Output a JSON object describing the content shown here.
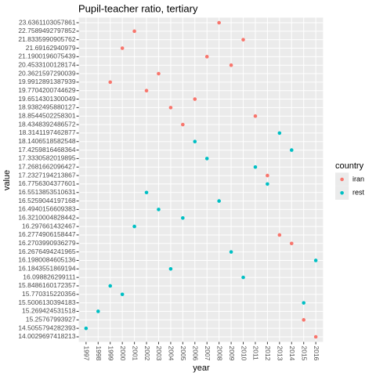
{
  "chart_data": {
    "type": "scatter",
    "title": "Pupil-teacher ratio, tertiary",
    "x_label": "year",
    "y_label": "value",
    "legend_title": "country",
    "legend_position": "right",
    "categories": [
      1997,
      1998,
      1999,
      2000,
      2001,
      2002,
      2003,
      2004,
      2005,
      2006,
      2007,
      2008,
      2009,
      2010,
      2011,
      2012,
      2013,
      2014,
      2015,
      2016
    ],
    "yticks": [
      14.0029697418213,
      14.5055794282393,
      15.25767993927,
      15.269424531518,
      15.5006130394183,
      15.770315220356,
      15.8486160172357,
      16.098826299111,
      16.1843551869194,
      16.1980084605136,
      16.2676494241965,
      16.2703990936279,
      16.2774906158447,
      16.297661432467,
      16.3210004828442,
      16.4940156609383,
      16.5259044197168,
      16.5513853510631,
      16.7756304377601,
      17.2327194213867,
      17.2681662096427,
      17.3330582019895,
      17.4259816468364,
      18.1406518582548,
      18.3141197462877,
      18.4348392486572,
      18.8544502258301,
      18.9382495880127,
      19.6514301300049,
      19.7704200744629,
      19.9912891387939,
      20.3621597290039,
      20.4533100128174,
      21.1900196075439,
      21.69162940979,
      21.8335990905762,
      22.7589492797852,
      23.6361103057861
    ],
    "series": [
      {
        "name": "iran",
        "color": "#F8766D",
        "x": [
          1999,
          2000,
          2001,
          2002,
          2003,
          2004,
          2005,
          2006,
          2007,
          2008,
          2009,
          2010,
          2011,
          2012,
          2013,
          2014,
          2015,
          2016
        ],
        "values": [
          19.9912891387939,
          21.69162940979,
          22.7589492797852,
          19.7704200744629,
          20.3621597290039,
          18.9382495880127,
          18.4348392486572,
          19.6514301300049,
          21.1900196075439,
          23.6361103057861,
          20.4533100128174,
          21.8335990905762,
          18.8544502258301,
          17.2327194213867,
          16.2774906158447,
          16.2703990936279,
          15.25767993927,
          14.0029697418213
        ]
      },
      {
        "name": "rest",
        "color": "#00BFC4",
        "x": [
          1997,
          1998,
          1999,
          2000,
          2001,
          2002,
          2003,
          2004,
          2005,
          2006,
          2007,
          2008,
          2009,
          2010,
          2011,
          2012,
          2013,
          2014,
          2015,
          2016
        ],
        "values": [
          14.5055794282393,
          15.269424531518,
          15.8486160172357,
          15.770315220356,
          16.297661432467,
          16.5513853510631,
          16.4940156609383,
          16.1843551869194,
          16.3210004828442,
          18.1406518582548,
          17.3330582019895,
          16.5259044197168,
          16.2676494241965,
          16.098826299111,
          17.2681662096427,
          16.7756304377601,
          18.3141197462877,
          17.4259816468364,
          15.5006130394183,
          16.1980084605136
        ]
      }
    ],
    "grid": true
  }
}
